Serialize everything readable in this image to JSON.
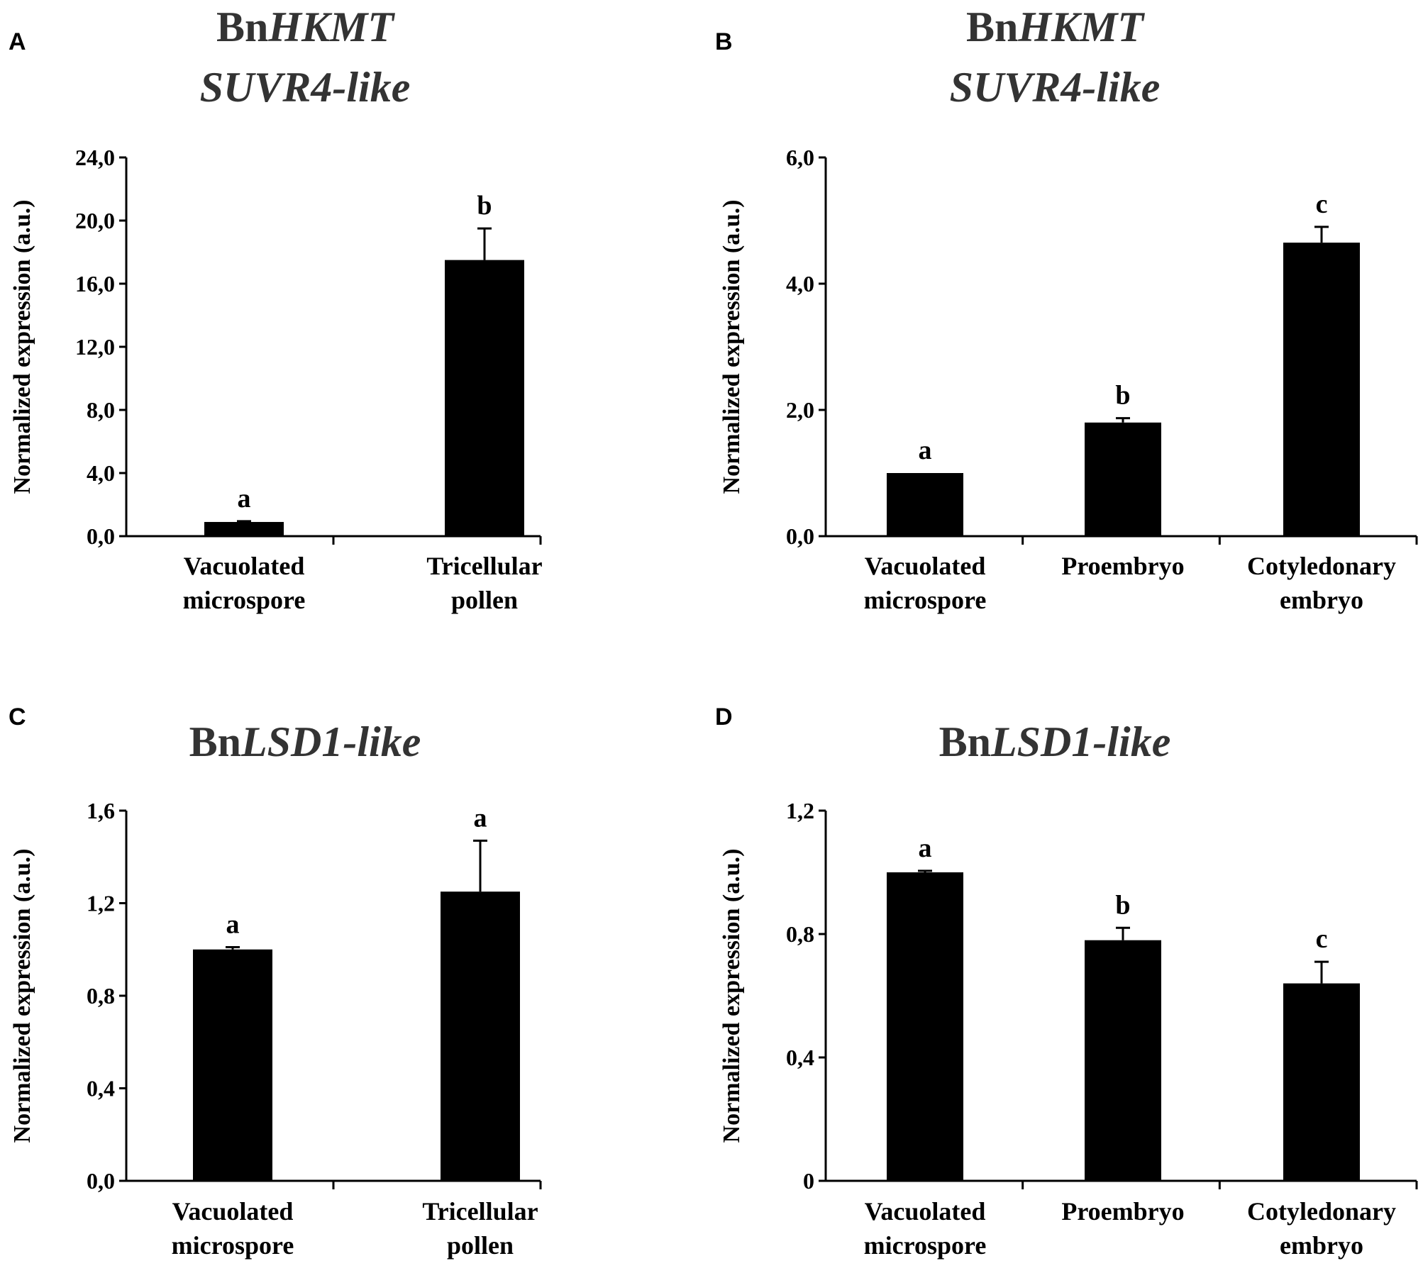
{
  "chart_data": [
    {
      "panel": "A",
      "type": "bar",
      "title": {
        "prefix": "Bn",
        "italic_line1": "HKMT",
        "line2": "SUVR4-like"
      },
      "ylabel": "Normalized expression (a.u.)",
      "yticks": [
        "0,0",
        "4,0",
        "8,0",
        "12,0",
        "16,0",
        "20,0",
        "24,0"
      ],
      "ylim": [
        0,
        24
      ],
      "categories": [
        [
          "Vacuolated",
          "microspore"
        ],
        [
          "Tricellular",
          "pollen"
        ]
      ],
      "values": [
        0.9,
        17.5
      ],
      "errors": [
        0.05,
        2.0
      ],
      "significance": [
        "a",
        "b"
      ]
    },
    {
      "panel": "B",
      "type": "bar",
      "title": {
        "prefix": "Bn",
        "italic_line1": "HKMT",
        "line2": "SUVR4-like"
      },
      "ylabel": "Normalized expression (a.u.)",
      "yticks": [
        "0,0",
        "2,0",
        "4,0",
        "6,0"
      ],
      "ylim": [
        0,
        6
      ],
      "categories": [
        [
          "Vacuolated",
          "microspore"
        ],
        [
          "Proembryo"
        ],
        [
          "Cotyledonary",
          "embryo"
        ]
      ],
      "values": [
        1.0,
        1.8,
        4.65
      ],
      "errors": [
        0.0,
        0.07,
        0.25
      ],
      "significance": [
        "a",
        "b",
        "c"
      ]
    },
    {
      "panel": "C",
      "type": "bar",
      "title": {
        "prefix": "Bn",
        "italic_line1": "LSD1-like",
        "line2": ""
      },
      "ylabel": "Normalized expression (a.u.)",
      "yticks": [
        "0,0",
        "0,4",
        "0,8",
        "1,2",
        "1,6"
      ],
      "ylim": [
        0,
        1.6
      ],
      "categories": [
        [
          "Vacuolated",
          "microspore"
        ],
        [
          "Tricellular",
          "pollen"
        ]
      ],
      "values": [
        1.0,
        1.25
      ],
      "errors": [
        0.01,
        0.22
      ],
      "significance": [
        "a",
        "a"
      ]
    },
    {
      "panel": "D",
      "type": "bar",
      "title": {
        "prefix": "Bn",
        "italic_line1": "LSD1-like",
        "line2": ""
      },
      "ylabel": "Normalized expression (a.u.)",
      "yticks": [
        "0",
        "0,4",
        "0,8",
        "1,2"
      ],
      "ylim": [
        0,
        1.2
      ],
      "categories": [
        [
          "Vacuolated",
          "microspore"
        ],
        [
          "Proembryo"
        ],
        [
          "Cotyledonary",
          "embryo"
        ]
      ],
      "values": [
        1.0,
        0.78,
        0.64
      ],
      "errors": [
        0.005,
        0.04,
        0.07
      ],
      "significance": [
        "a",
        "b",
        "c"
      ]
    }
  ]
}
